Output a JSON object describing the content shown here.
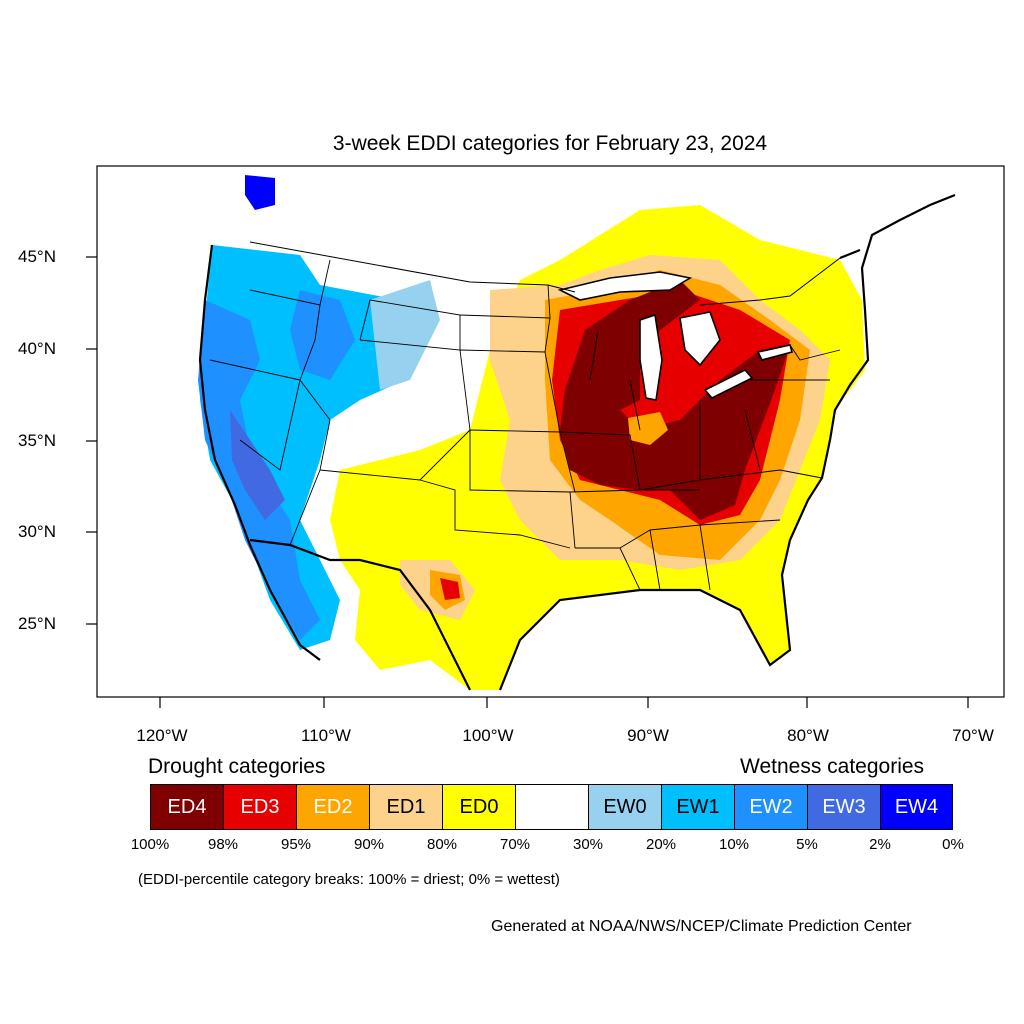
{
  "title": "3-week EDDI categories for February 23, 2024",
  "axes": {
    "longitude_labels": [
      "120°W",
      "110°W",
      "100°W",
      "90°W",
      "80°W",
      "70°W"
    ],
    "latitude_labels": [
      "45°N",
      "40°N",
      "35°N",
      "30°N",
      "25°N"
    ]
  },
  "legend": {
    "drought_heading": "Drought categories",
    "wetness_heading": "Wetness categories",
    "categories": [
      {
        "label": "ED4",
        "color": "#7f0000",
        "text_color": "#ffffff"
      },
      {
        "label": "ED3",
        "color": "#e60000",
        "text_color": "#ffffff"
      },
      {
        "label": "ED2",
        "color": "#ffa500",
        "text_color": "#ffffff"
      },
      {
        "label": "ED1",
        "color": "#fdd28a",
        "text_color": "#000000"
      },
      {
        "label": "ED0",
        "color": "#ffff00",
        "text_color": "#000000"
      },
      {
        "label": "",
        "color": "#ffffff",
        "text_color": "#000000"
      },
      {
        "label": "EW0",
        "color": "#96d2f0",
        "text_color": "#000000"
      },
      {
        "label": "EW1",
        "color": "#00bfff",
        "text_color": "#000000"
      },
      {
        "label": "EW2",
        "color": "#1e90ff",
        "text_color": "#ffffff"
      },
      {
        "label": "EW3",
        "color": "#4169e1",
        "text_color": "#ffffff"
      },
      {
        "label": "EW4",
        "color": "#0000ff",
        "text_color": "#ffffff"
      }
    ],
    "percent_breaks": [
      "100%",
      "98%",
      "95%",
      "90%",
      "80%",
      "70%",
      "30%",
      "20%",
      "10%",
      "5%",
      "2%",
      "0%"
    ]
  },
  "note": "(EDDI-percentile category breaks: 100% = driest; 0% = wettest)",
  "credit": "Generated at NOAA/NWS/NCEP/Climate Prediction Center"
}
